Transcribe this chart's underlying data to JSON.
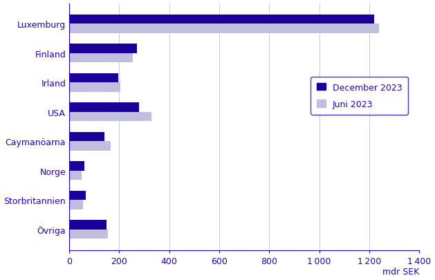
{
  "categories": [
    "Luxemburg",
    "Finland",
    "Irland",
    "USA",
    "Caymanöarna",
    "Norge",
    "Storbritannien",
    "Övriga"
  ],
  "december_2023": [
    1220,
    270,
    195,
    280,
    140,
    60,
    65,
    150
  ],
  "juni_2023": [
    1240,
    255,
    205,
    330,
    165,
    50,
    55,
    155
  ],
  "dec_color": "#1a0099",
  "jun_color": "#c0bfe0",
  "axis_color": "#2200cc",
  "text_color": "#2200cc",
  "xlabel": "mdr SEK",
  "xlim": [
    0,
    1400
  ],
  "xticks": [
    0,
    200,
    400,
    600,
    800,
    1000,
    1200,
    1400
  ],
  "legend_dec": "December 2023",
  "legend_jun": "Juni 2023",
  "bar_height": 0.32,
  "figsize": [
    6.29,
    4.06
  ],
  "dpi": 100
}
